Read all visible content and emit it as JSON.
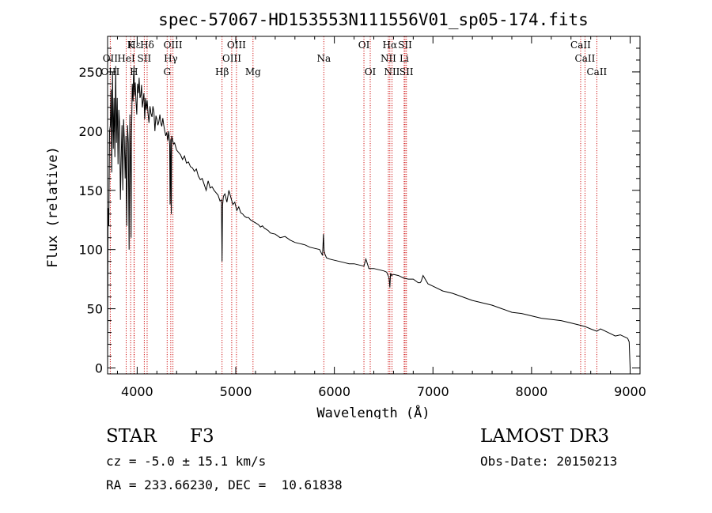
{
  "chart_data": {
    "type": "line",
    "title": "spec-57067-HD153553N111556V01_sp05-174.fits",
    "xlabel": "Wavelength (Å)",
    "ylabel": "Flux (relative)",
    "xlim": [
      3700,
      9100
    ],
    "ylim": [
      -5,
      280
    ],
    "xticks": [
      4000,
      5000,
      6000,
      7000,
      8000,
      9000
    ],
    "yticks": [
      0,
      50,
      100,
      150,
      200,
      250
    ],
    "series": [
      {
        "name": "flux",
        "x": [
          3700,
          3705,
          3712,
          3720,
          3728,
          3735,
          3742,
          3750,
          3758,
          3766,
          3774,
          3782,
          3790,
          3798,
          3806,
          3814,
          3822,
          3830,
          3838,
          3846,
          3854,
          3862,
          3870,
          3878,
          3886,
          3890,
          3894,
          3902,
          3910,
          3918,
          3926,
          3934,
          3938,
          3942,
          3950,
          3958,
          3962,
          3968,
          3972,
          3980,
          3988,
          3996,
          4004,
          4012,
          4020,
          4028,
          4036,
          4044,
          4052,
          4060,
          4068,
          4076,
          4084,
          4092,
          4101,
          4110,
          4120,
          4130,
          4140,
          4150,
          4160,
          4170,
          4180,
          4190,
          4200,
          4210,
          4220,
          4230,
          4240,
          4250,
          4260,
          4270,
          4280,
          4290,
          4300,
          4310,
          4320,
          4330,
          4334,
          4340,
          4346,
          4350,
          4360,
          4370,
          4380,
          4390,
          4400,
          4420,
          4440,
          4460,
          4480,
          4500,
          4520,
          4540,
          4560,
          4580,
          4600,
          4620,
          4640,
          4660,
          4680,
          4700,
          4720,
          4740,
          4760,
          4780,
          4800,
          4820,
          4840,
          4855,
          4861,
          4866,
          4875,
          4890,
          4910,
          4930,
          4950,
          4970,
          4990,
          5010,
          5030,
          5050,
          5070,
          5090,
          5110,
          5130,
          5150,
          5170,
          5190,
          5210,
          5230,
          5250,
          5270,
          5290,
          5310,
          5330,
          5350,
          5400,
          5450,
          5500,
          5550,
          5600,
          5650,
          5700,
          5750,
          5800,
          5850,
          5880,
          5890,
          5896,
          5905,
          5920,
          5950,
          6000,
          6050,
          6100,
          6150,
          6200,
          6250,
          6300,
          6320,
          6350,
          6400,
          6450,
          6500,
          6530,
          6555,
          6563,
          6570,
          6580,
          6600,
          6650,
          6700,
          6750,
          6800,
          6850,
          6870,
          6880,
          6900,
          6950,
          7000,
          7100,
          7200,
          7300,
          7400,
          7500,
          7600,
          7700,
          7800,
          7900,
          8000,
          8100,
          8200,
          8300,
          8400,
          8498,
          8542,
          8600,
          8662,
          8700,
          8750,
          8800,
          8850,
          8900,
          8950,
          8975,
          8990,
          9000
        ],
        "y": [
          0,
          135,
          120,
          200,
          205,
          235,
          165,
          250,
          185,
          228,
          178,
          255,
          190,
          228,
          172,
          218,
          205,
          142,
          178,
          205,
          150,
          210,
          192,
          160,
          196,
          145,
          120,
          205,
          190,
          100,
          214,
          160,
          110,
          193,
          240,
          225,
          245,
          255,
          230,
          241,
          225,
          214,
          240,
          232,
          245,
          228,
          230,
          239,
          220,
          226,
          232,
          210,
          228,
          218,
          226,
          215,
          207,
          221,
          215,
          212,
          221,
          216,
          200,
          213,
          210,
          205,
          208,
          214,
          207,
          204,
          211,
          205,
          200,
          196,
          199,
          192,
          200,
          188,
          138,
          193,
          130,
          196,
          192,
          189,
          190,
          187,
          184,
          182,
          180,
          176,
          179,
          173,
          174,
          170,
          169,
          166,
          168,
          162,
          159,
          160,
          155,
          150,
          158,
          152,
          153,
          150,
          148,
          146,
          141,
          142,
          90,
          137,
          145,
          147,
          140,
          150,
          144,
          138,
          140,
          133,
          136,
          131,
          130,
          128,
          127,
          127,
          125,
          124,
          123,
          122,
          121,
          119,
          120,
          118,
          117,
          116,
          114,
          113,
          110,
          111,
          108,
          106,
          105,
          104,
          102,
          101,
          100,
          95,
          113,
          99,
          96,
          93,
          92,
          91,
          90,
          89,
          88,
          88,
          87,
          86,
          92,
          84,
          84,
          83,
          82,
          81,
          76,
          68,
          80,
          78,
          79,
          78,
          76,
          75,
          75,
          72,
          72,
          73,
          78,
          71,
          69,
          65,
          63,
          60,
          57,
          55,
          53,
          50,
          47,
          46,
          44,
          42,
          41,
          40,
          38,
          36,
          35,
          33,
          31,
          33,
          31,
          29,
          27,
          28,
          26,
          25,
          22,
          0
        ]
      }
    ],
    "lines_top": [
      {
        "label": "Hε",
        "x": 3970
      },
      {
        "label": "K",
        "x": 3934
      },
      {
        "label": "Hδ",
        "x": 4101
      },
      {
        "label": "OIII",
        "x": 4363
      },
      {
        "label": "OIII",
        "x": 5007
      },
      {
        "label": "OI",
        "x": 6300
      },
      {
        "label": "Hα",
        "x": 6563
      },
      {
        "label": "SII",
        "x": 6717
      },
      {
        "label": "CaII",
        "x": 8498
      }
    ],
    "lines_mid": [
      {
        "label": "OII",
        "x": 3727
      },
      {
        "label": "HeI",
        "x": 3889
      },
      {
        "label": "SII",
        "x": 4072
      },
      {
        "label": "Hγ",
        "x": 4341
      },
      {
        "label": "OIII",
        "x": 4959
      },
      {
        "label": "Na",
        "x": 5893
      },
      {
        "label": "NII",
        "x": 6548
      },
      {
        "label": "Li",
        "x": 6708
      },
      {
        "label": "CaII",
        "x": 8542
      }
    ],
    "lines_low": [
      {
        "label": "OIII",
        "x": 3727
      },
      {
        "label": "H",
        "x": 3968
      },
      {
        "label": "G",
        "x": 4304
      },
      {
        "label": "Hβ",
        "x": 4861
      },
      {
        "label": "Mg",
        "x": 5175
      },
      {
        "label": "OI",
        "x": 6364
      },
      {
        "label": "NII",
        "x": 6584
      },
      {
        "label": "SII",
        "x": 6731
      },
      {
        "label": "CaII",
        "x": 8662
      }
    ]
  },
  "info": {
    "object_type": "STAR",
    "subclass": "F3",
    "survey": "LAMOST DR3",
    "cz": "cz = -5.0 ± 15.1 km/s",
    "obs_date": "Obs-Date: 20150213",
    "coords": "RA = 233.66230, DEC =  10.61838"
  }
}
